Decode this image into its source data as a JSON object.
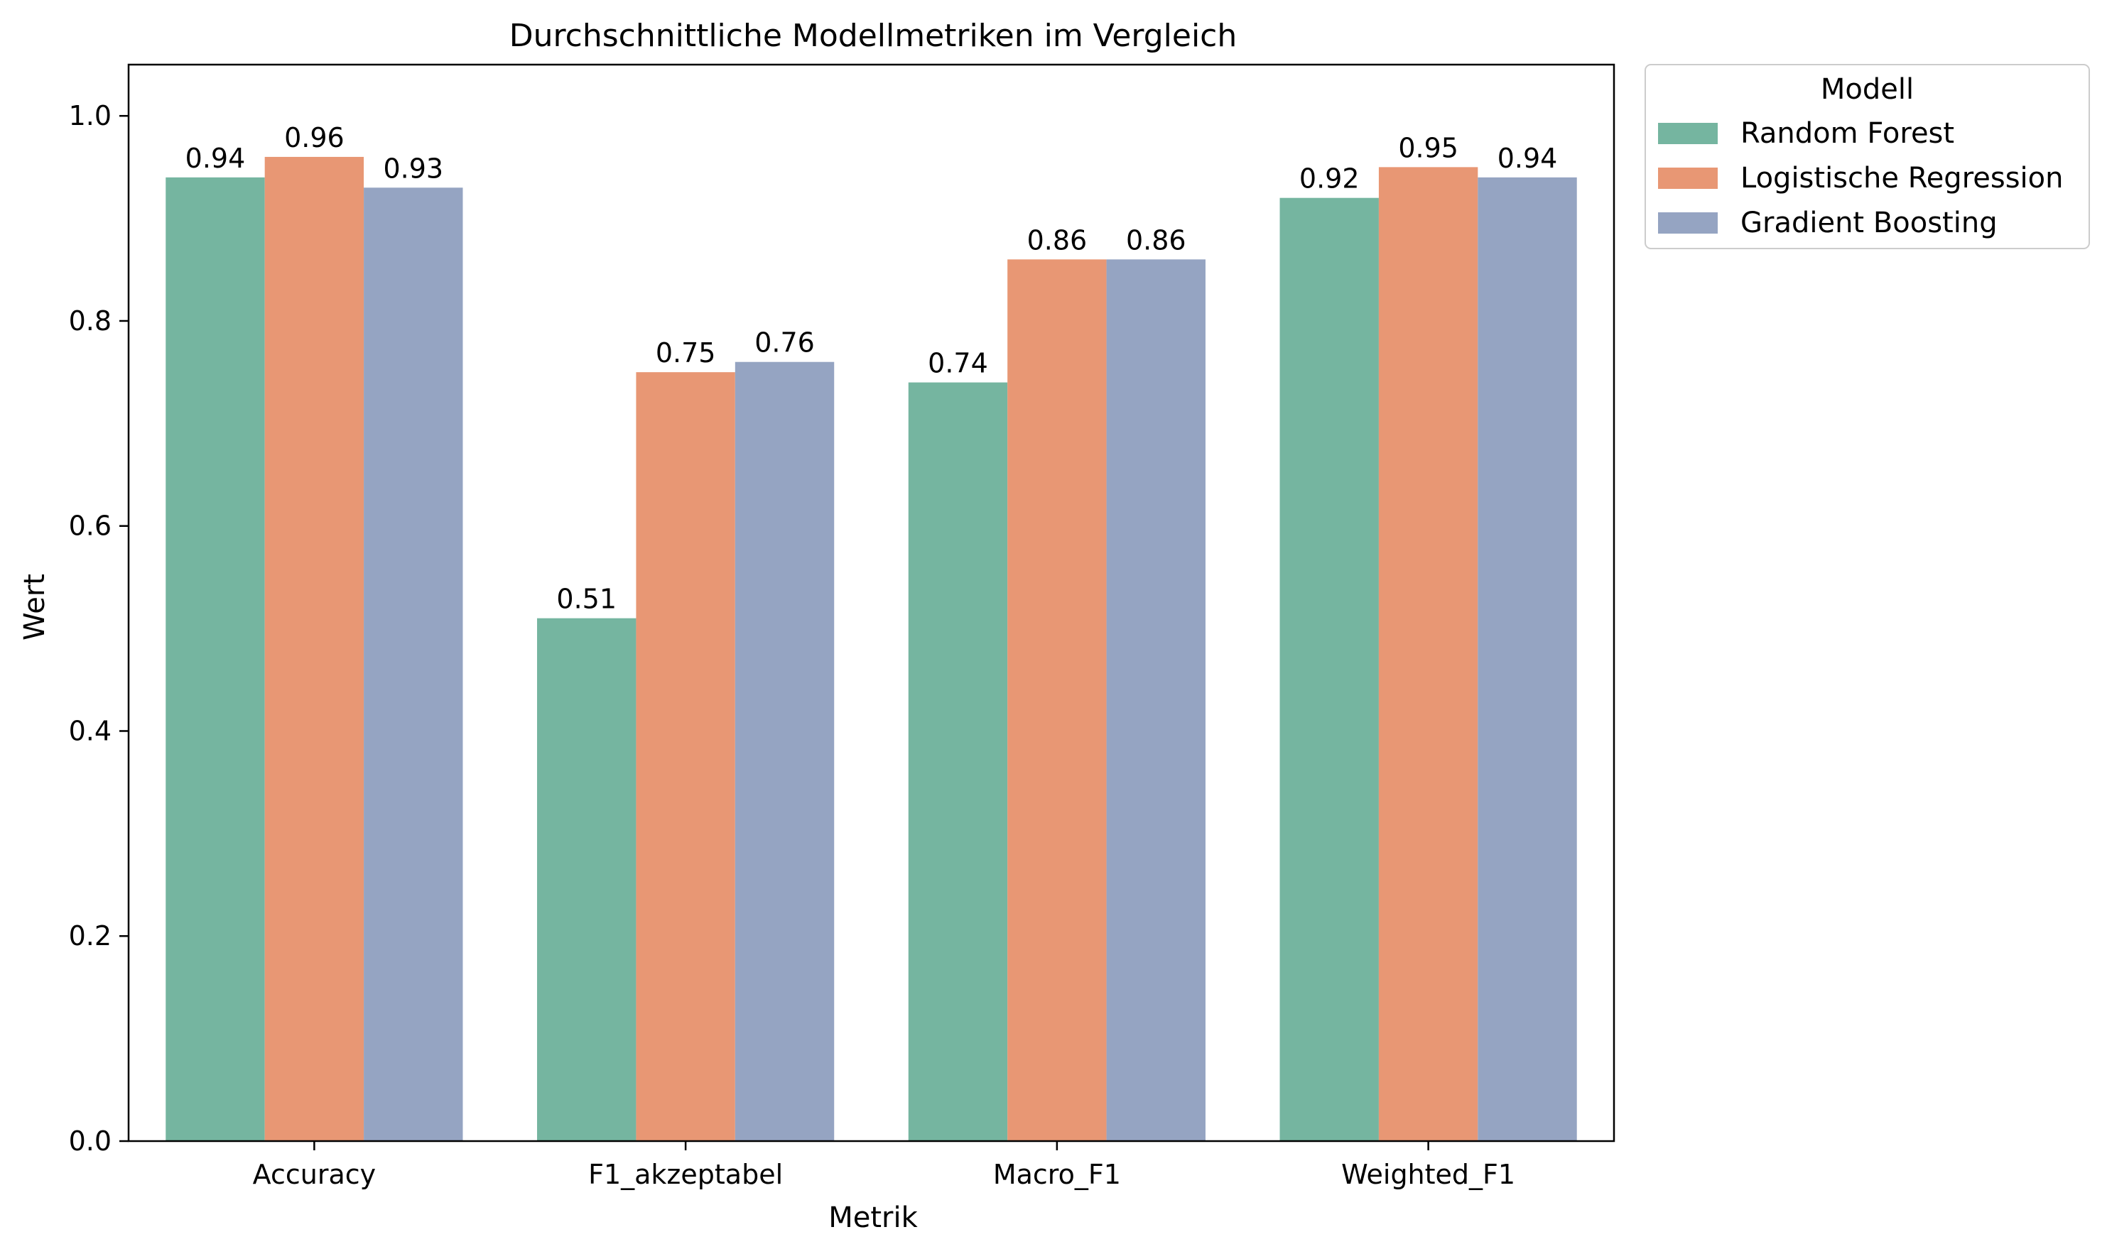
{
  "chart_data": {
    "type": "bar",
    "title": "Durchschnittliche Modellmetriken im Vergleich",
    "xlabel": "Metrik",
    "ylabel": "Wert",
    "categories": [
      "Accuracy",
      "F1_akzeptabel",
      "Macro_F1",
      "Weighted_F1"
    ],
    "ylim": [
      0,
      1.05
    ],
    "yticks": [
      0.0,
      0.2,
      0.4,
      0.6,
      0.8,
      1.0
    ],
    "ytick_labels": [
      "0.0",
      "0.2",
      "0.4",
      "0.6",
      "0.8",
      "1.0"
    ],
    "grid": false,
    "legend": {
      "title": "Modell",
      "placement": "outside-top-right"
    },
    "series": [
      {
        "name": "Random Forest",
        "color": "#75b5a0",
        "values": [
          0.94,
          0.51,
          0.74,
          0.92
        ],
        "labels": [
          "0.94",
          "0.51",
          "0.74",
          "0.92"
        ]
      },
      {
        "name": "Logistische Regression",
        "color": "#e89774",
        "values": [
          0.96,
          0.75,
          0.86,
          0.95
        ],
        "labels": [
          "0.96",
          "0.75",
          "0.86",
          "0.95"
        ]
      },
      {
        "name": "Gradient Boosting",
        "color": "#95a4c2",
        "values": [
          0.93,
          0.76,
          0.86,
          0.94
        ],
        "labels": [
          "0.93",
          "0.76",
          "0.86",
          "0.94"
        ]
      }
    ]
  }
}
